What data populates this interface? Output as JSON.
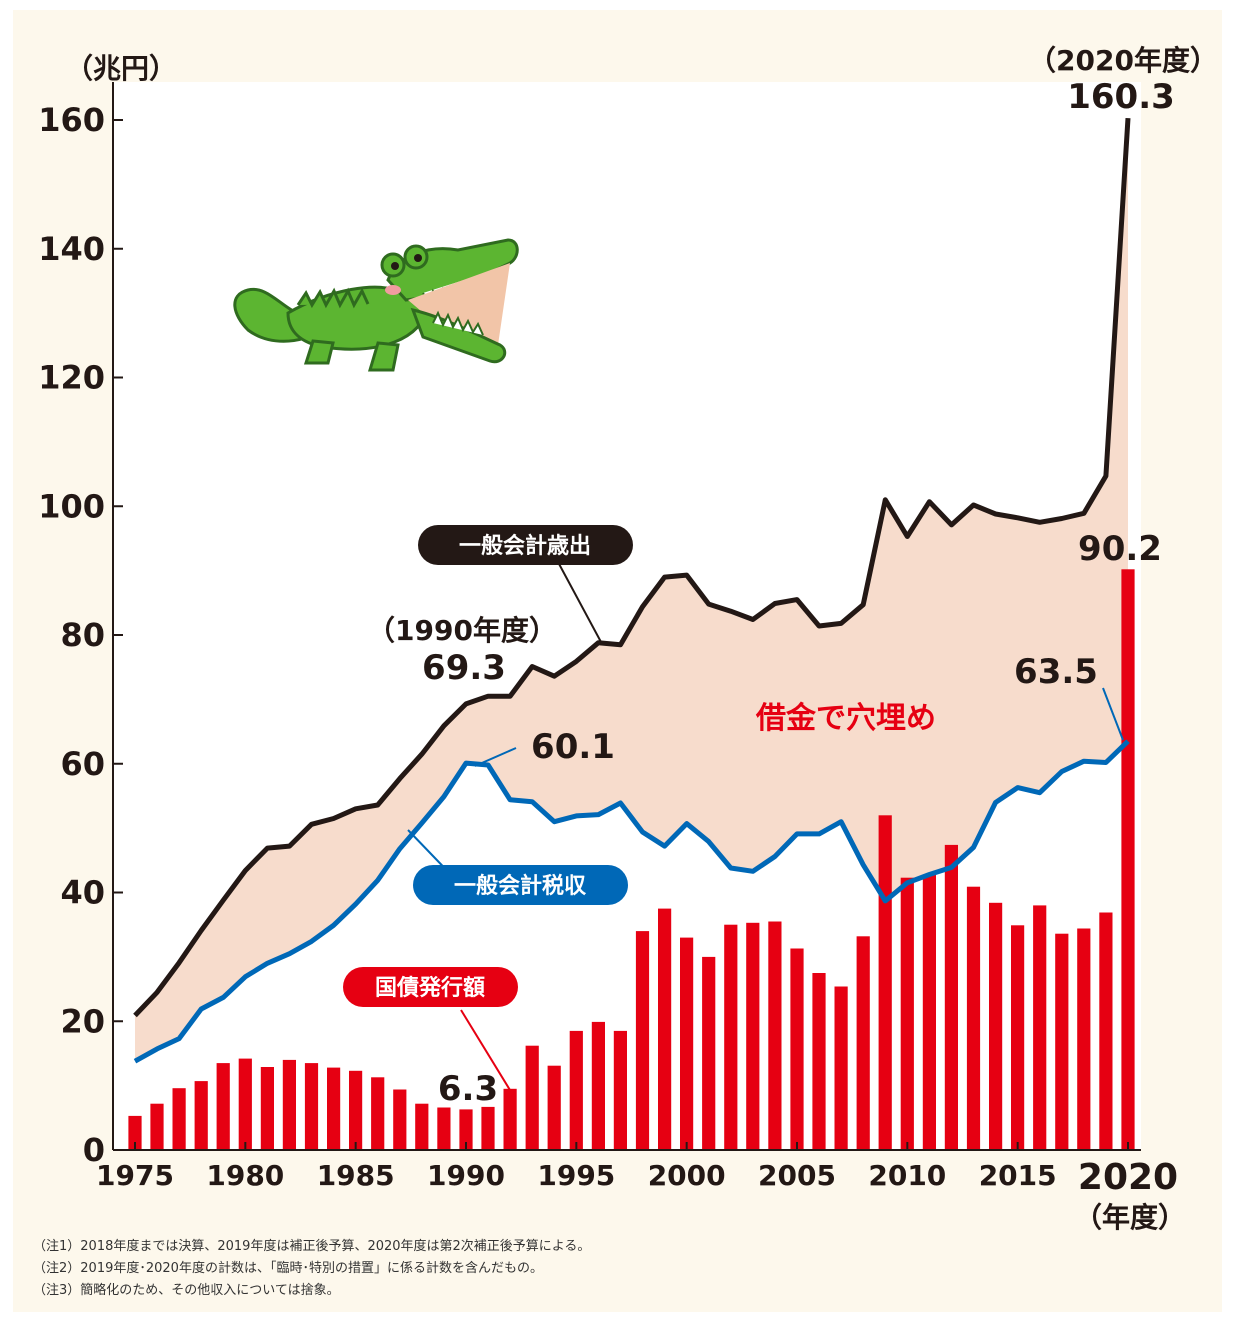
{
  "chart_data": {
    "type": "bar+line",
    "y_unit_label": "（兆円）",
    "x_unit_label": "（年度）",
    "x_ticks": [
      "1975",
      "1980",
      "1985",
      "1990",
      "1995",
      "2000",
      "2005",
      "2010",
      "2015",
      "2020"
    ],
    "y_ticks": [
      "0",
      "20",
      "40",
      "60",
      "80",
      "100",
      "120",
      "140",
      "160"
    ],
    "ylim": [
      0,
      160
    ],
    "years": [
      1975,
      1976,
      1977,
      1978,
      1979,
      1980,
      1981,
      1982,
      1983,
      1984,
      1985,
      1986,
      1987,
      1988,
      1989,
      1990,
      1991,
      1992,
      1993,
      1994,
      1995,
      1996,
      1997,
      1998,
      1999,
      2000,
      2001,
      2002,
      2003,
      2004,
      2005,
      2006,
      2007,
      2008,
      2009,
      2010,
      2011,
      2012,
      2013,
      2014,
      2015,
      2016,
      2017,
      2018,
      2019,
      2020
    ],
    "series": [
      {
        "name": "一般会計歳出",
        "type": "line",
        "color": "#231815",
        "values": [
          20.9,
          24.5,
          29.1,
          34.1,
          38.8,
          43.4,
          46.9,
          47.2,
          50.6,
          51.5,
          53.0,
          53.6,
          57.7,
          61.5,
          65.9,
          69.3,
          70.5,
          70.5,
          75.1,
          73.6,
          75.9,
          78.8,
          78.5,
          84.4,
          89.0,
          89.3,
          84.8,
          83.7,
          82.4,
          84.9,
          85.5,
          81.4,
          81.8,
          84.7,
          101.0,
          95.3,
          100.7,
          97.1,
          100.2,
          98.8,
          98.2,
          97.5,
          98.1,
          98.9,
          104.7,
          160.3
        ]
      },
      {
        "name": "一般会計税収",
        "type": "line",
        "color": "#0068b7",
        "values": [
          13.8,
          15.7,
          17.3,
          21.9,
          23.7,
          26.9,
          29.0,
          30.5,
          32.4,
          34.9,
          38.2,
          41.9,
          46.8,
          50.8,
          54.9,
          60.1,
          59.8,
          54.4,
          54.1,
          51.0,
          51.9,
          52.1,
          53.9,
          49.4,
          47.2,
          50.7,
          47.9,
          43.8,
          43.3,
          45.6,
          49.1,
          49.1,
          51.0,
          44.3,
          38.7,
          41.5,
          42.8,
          43.9,
          47.0,
          54.0,
          56.3,
          55.5,
          58.8,
          60.4,
          60.2,
          63.5
        ]
      },
      {
        "name": "国債発行額",
        "type": "bar",
        "color": "#e60012",
        "values": [
          5.3,
          7.2,
          9.6,
          10.7,
          13.5,
          14.2,
          12.9,
          14.0,
          13.5,
          12.8,
          12.3,
          11.3,
          9.4,
          7.2,
          6.6,
          6.3,
          6.7,
          9.5,
          16.2,
          13.1,
          18.5,
          19.9,
          18.5,
          34.0,
          37.5,
          33.0,
          30.0,
          35.0,
          35.3,
          35.5,
          31.3,
          27.5,
          25.4,
          33.2,
          52.0,
          42.3,
          42.8,
          47.4,
          40.9,
          38.4,
          34.9,
          38.0,
          33.6,
          34.4,
          36.9,
          90.2
        ]
      }
    ],
    "fill_between": {
      "label": "借金で穴埋め",
      "color": "#f7dccc"
    },
    "annotations": {
      "exp_2020": "（2020年度）",
      "exp_2020_value": "160.3",
      "exp_1990": "（1990年度）",
      "exp_1990_value": "69.3",
      "tax_1990_value": "60.1",
      "tax_2020_value": "63.5",
      "bond_2020_value": "90.2",
      "bond_1990_value": "6.3"
    },
    "legend": {
      "expenditure": "一般会計歳出",
      "tax": "一般会計税収",
      "bonds": "国債発行額"
    },
    "grid": false
  },
  "notes": [
    "（注1）2018年度までは決算、2019年度は補正後予算、2020年度は第2次補正後予算による。",
    "（注2）2019年度･2020年度の計数は、「臨時･特別の措置」に係る計数を含んだもの。",
    "（注3）簡略化のため、その他収入については捨象。"
  ],
  "illustration": {
    "name": "crocodile-illustration",
    "body_color": "#5cb531",
    "outline_color": "#2f6b1f"
  }
}
